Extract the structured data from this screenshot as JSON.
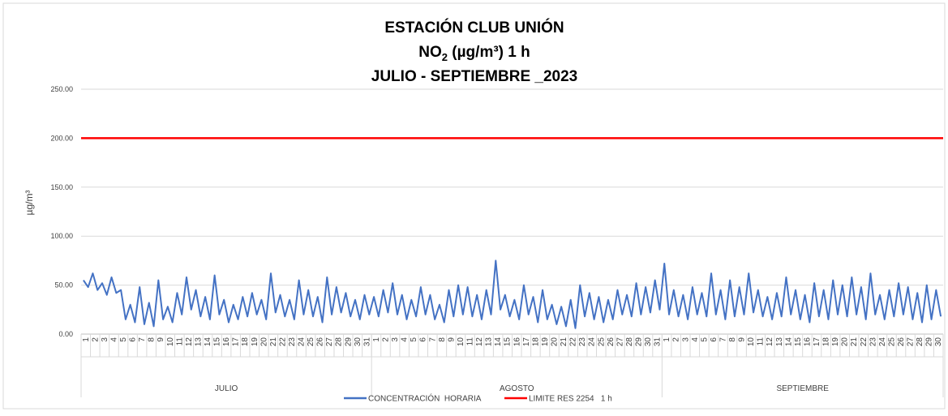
{
  "chart_data": {
    "type": "line",
    "title_lines": [
      "ESTACIÓN CLUB UNIÓN",
      {
        "main": "NO",
        "sub": "2",
        "rest": " (µg/m³) 1 h"
      },
      "JULIO - SEPTIEMBRE _2023"
    ],
    "ylabel": "µg/m³",
    "months": [
      "JULIO",
      "AGOSTO",
      "SEPTIEMBRE"
    ],
    "categories": [
      "1",
      null,
      "2",
      null,
      "3",
      null,
      "4",
      null,
      "5",
      null,
      "6",
      null,
      "7",
      null,
      "8",
      null,
      "9",
      null,
      "10",
      null,
      "11",
      null,
      "12",
      null,
      "13",
      null,
      "14",
      null,
      "15",
      null,
      "16",
      null,
      "17",
      null,
      "18",
      null,
      "19",
      null,
      "20",
      null,
      "21",
      null,
      "22",
      null,
      "23",
      null,
      "24",
      null,
      "25",
      null,
      "26",
      null,
      "27",
      null,
      "28",
      null,
      "29",
      null,
      "30",
      null,
      "31",
      null,
      "1",
      null,
      "2",
      null,
      "3",
      null,
      "4",
      null,
      "5",
      null,
      "6",
      null,
      "7",
      null,
      "8",
      null,
      "9",
      null,
      "10",
      null,
      "11",
      null,
      "12",
      null,
      "13",
      null,
      "14",
      null,
      "15",
      null,
      "16",
      null,
      "17",
      null,
      "18",
      null,
      "19",
      null,
      "20",
      null,
      "21",
      null,
      "22",
      null,
      "23",
      null,
      "24",
      null,
      "25",
      null,
      "26",
      null,
      "27",
      null,
      "28",
      null,
      "29",
      null,
      "30",
      null,
      "31",
      null,
      "1",
      null,
      "2",
      null,
      "3",
      null,
      "4",
      null,
      "5",
      null,
      "6",
      null,
      "7",
      null,
      "8",
      null,
      "9",
      null,
      "10",
      null,
      "11",
      null,
      "12",
      null,
      "13",
      null,
      "14",
      null,
      "15",
      null,
      "16",
      null,
      "17",
      null,
      "18",
      null,
      "19",
      null,
      "20",
      null,
      "21",
      null,
      "22",
      null,
      "23",
      null,
      "24",
      null,
      "25",
      null,
      "26",
      null,
      "27",
      null,
      "28",
      null,
      "29",
      null,
      "30",
      null
    ],
    "series": [
      {
        "name": "CONCENTRACIÓN  HORARIA",
        "color": "#4472c4",
        "values": [
          55,
          48,
          62,
          45,
          52,
          40,
          58,
          42,
          45,
          15,
          30,
          12,
          48,
          10,
          32,
          8,
          55,
          15,
          28,
          12,
          42,
          20,
          58,
          25,
          45,
          18,
          38,
          15,
          60,
          20,
          35,
          12,
          30,
          15,
          38,
          18,
          42,
          20,
          35,
          15,
          62,
          22,
          40,
          18,
          35,
          15,
          55,
          20,
          45,
          18,
          38,
          12,
          58,
          20,
          48,
          22,
          42,
          18,
          35,
          15,
          40,
          20,
          38,
          18,
          45,
          22,
          52,
          20,
          40,
          15,
          35,
          18,
          48,
          20,
          40,
          15,
          30,
          12,
          45,
          18,
          50,
          20,
          48,
          18,
          40,
          15,
          45,
          20,
          75,
          25,
          40,
          18,
          35,
          15,
          50,
          20,
          38,
          12,
          45,
          15,
          30,
          10,
          28,
          8,
          35,
          6,
          50,
          18,
          42,
          15,
          38,
          12,
          35,
          15,
          45,
          20,
          40,
          18,
          52,
          20,
          48,
          22,
          55,
          25,
          72,
          20,
          45,
          18,
          40,
          15,
          48,
          20,
          42,
          18,
          62,
          20,
          45,
          15,
          55,
          18,
          48,
          20,
          62,
          22,
          45,
          18,
          38,
          15,
          42,
          18,
          58,
          20,
          45,
          15,
          40,
          12,
          52,
          18,
          45,
          15,
          55,
          20,
          50,
          18,
          58,
          20,
          48,
          15,
          62,
          20,
          40,
          15,
          45,
          18,
          52,
          20,
          48,
          15,
          42,
          12,
          50,
          15,
          45,
          18
        ]
      }
    ],
    "reference": {
      "name": "LIMITE RES 2254   1 h",
      "color": "#ff0000",
      "value": 200
    },
    "ylim": [
      0,
      250
    ],
    "yticks": [
      {
        "value": 0,
        "label": "0.00"
      },
      {
        "value": 50,
        "label": "50.00"
      },
      {
        "value": 100,
        "label": "100.00"
      },
      {
        "value": 150,
        "label": "150.00"
      },
      {
        "value": 200,
        "label": "200.00"
      },
      {
        "value": 250,
        "label": "250.00"
      }
    ],
    "grid": true
  }
}
